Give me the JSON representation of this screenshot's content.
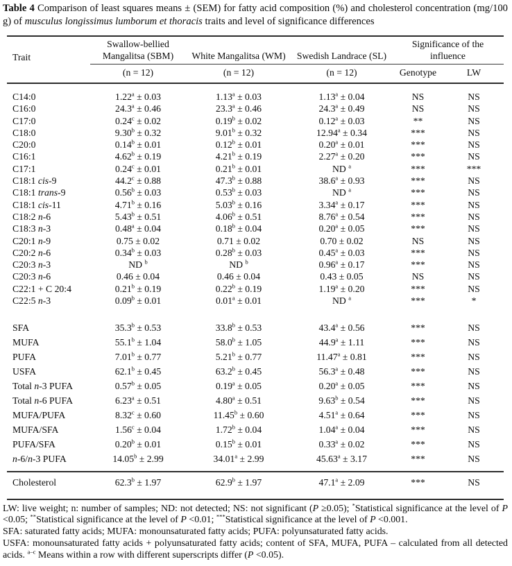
{
  "title": {
    "label": "Table 4",
    "text": " Comparison of least squares means ± (SEM) for fatty acid composition (%) and cholesterol concentration (mg/100 g) of _musculus longissimus lumborum et thoracis_ traits and level of significance differences"
  },
  "table": {
    "header": {
      "trait": "Trait",
      "groups": [
        {
          "name": "Swallow-bellied Mangalitsa (SBM)",
          "sub": "(n = 12)"
        },
        {
          "name": "White Mangalitsa (WM)",
          "sub": "(n = 12)"
        },
        {
          "name": "Swedish Landrace (SL)",
          "sub": "(n = 12)"
        }
      ],
      "significance": {
        "name": "Significance of the influence",
        "cols": [
          "Genotype",
          "LW"
        ]
      }
    },
    "sections": [
      {
        "rows": [
          {
            "trait": "C14:0",
            "sbm": "1.22{a} ± 0.03",
            "wm": "1.13{a} ± 0.03",
            "sl": "1.13{a} ± 0.04",
            "genotype": "NS",
            "lw": "NS"
          },
          {
            "trait": "C16:0",
            "sbm": "24.3{a} ± 0.46",
            "wm": "23.3{a} ± 0.46",
            "sl": "24.3{a} ± 0.49",
            "genotype": "NS",
            "lw": "NS"
          },
          {
            "trait": "C17:0",
            "sbm": "0.24{c} ± 0.02",
            "wm": "0.19{b} ± 0.02",
            "sl": "0.12{a} ± 0.03",
            "genotype": "**",
            "lw": "NS"
          },
          {
            "trait": "C18:0",
            "sbm": "9.30{b} ± 0.32",
            "wm": "9.01{b} ± 0.32",
            "sl": "12.94{a} ± 0.34",
            "genotype": "***",
            "lw": "NS"
          },
          {
            "trait": "C20:0",
            "sbm": "0.14{b} ± 0.01",
            "wm": "0.12{b} ± 0.01",
            "sl": "0.20{a} ± 0.01",
            "genotype": "***",
            "lw": "NS"
          },
          {
            "trait": "C16:1",
            "sbm": "4.62{b} ± 0.19",
            "wm": "4.21{b} ± 0.19",
            "sl": "2.27{a} ± 0.20",
            "genotype": "***",
            "lw": "NS"
          },
          {
            "trait": "C17:1",
            "sbm": "0.24{c} ± 0.01",
            "wm": "0.21{b} ± 0.01",
            "sl": "ND {a}",
            "genotype": "***",
            "lw": "***"
          },
          {
            "trait": "C18:1 _cis_-9",
            "sbm": "44.2{c} ± 0.88",
            "wm": "47.3{b} ± 0.88",
            "sl": "38.6{a} ± 0.93",
            "genotype": "***",
            "lw": "NS"
          },
          {
            "trait": "C18:1 _trans_-9",
            "sbm": "0.56{b} ± 0.03",
            "wm": "0.53{b} ± 0.03",
            "sl": "ND {a}",
            "genotype": "***",
            "lw": "NS"
          },
          {
            "trait": "C18:1 _cis_-11",
            "sbm": "4.71{b} ± 0.16",
            "wm": "5.03{b} ± 0.16",
            "sl": "3.34{a} ± 0.17",
            "genotype": "***",
            "lw": "NS"
          },
          {
            "trait": "C18:2 _n_-6",
            "sbm": "5.43{b} ± 0.51",
            "wm": "4.06{b} ± 0.51",
            "sl": "8.76{a} ± 0.54",
            "genotype": "***",
            "lw": "NS"
          },
          {
            "trait": "C18:3 _n_-3",
            "sbm": "0.48{a} ± 0.04",
            "wm": "0.18{b} ± 0.04",
            "sl": "0.20{a} ± 0.05",
            "genotype": "***",
            "lw": "NS"
          },
          {
            "trait": "C20:1 _n_-9",
            "sbm": "0.75 ± 0.02",
            "wm": "0.71 ± 0.02",
            "sl": "0.70 ± 0.02",
            "genotype": "NS",
            "lw": "NS"
          },
          {
            "trait": "C20:2 _n_-6",
            "sbm": "0.34{b} ± 0.03",
            "wm": "0.28{b} ± 0.03",
            "sl": "0.45{a} ± 0.03",
            "genotype": "***",
            "lw": "NS"
          },
          {
            "trait": "C20:3 _n_-3",
            "sbm": "ND {b}",
            "wm": "ND {b}",
            "sl": "0.96{a} ± 0.17",
            "genotype": "***",
            "lw": "NS"
          },
          {
            "trait": "C20:3 _n_-6",
            "sbm": "0.46 ± 0.04",
            "wm": "0.46 ± 0.04",
            "sl": "0.43 ± 0.05",
            "genotype": "NS",
            "lw": "NS"
          },
          {
            "trait": "C22:1 + C 20:4",
            "sbm": "0.21{b} ± 0.19",
            "wm": "0.22{b} ± 0.19",
            "sl": "1.19{a} ± 0.20",
            "genotype": "***",
            "lw": "NS"
          },
          {
            "trait": "C22:5 _n_-3",
            "sbm": "0.09{b} ± 0.01",
            "wm": "0.01{a} ± 0.01",
            "sl": "ND {a}",
            "genotype": "***",
            "lw": "*"
          }
        ]
      },
      {
        "rows": [
          {
            "trait": "SFA",
            "sbm": "35.3{b} ± 0.53",
            "wm": "33.8{b} ± 0.53",
            "sl": "43.4{a} ± 0.56",
            "genotype": "***",
            "lw": "NS"
          },
          {
            "trait": "MUFA",
            "sbm": "55.1{b} ± 1.04",
            "wm": "58.0{b} ± 1.05",
            "sl": "44.9{a} ± 1.11",
            "genotype": "***",
            "lw": "NS"
          },
          {
            "trait": "PUFA",
            "sbm": "7.01{b} ± 0.77",
            "wm": "5.21{b} ± 0.77",
            "sl": "11.47{a} ± 0.81",
            "genotype": "***",
            "lw": "NS"
          },
          {
            "trait": "USFA",
            "sbm": "62.1{b} ± 0.45",
            "wm": "63.2{b} ± 0.45",
            "sl": "56.3{a} ± 0.48",
            "genotype": "***",
            "lw": "NS"
          },
          {
            "trait": "Total _n_-3 PUFA",
            "sbm": "0.57{b} ± 0.05",
            "wm": "0.19{a} ± 0.05",
            "sl": "0.20{a} ± 0.05",
            "genotype": "***",
            "lw": "NS"
          },
          {
            "trait": "Total _n_-6 PUFA",
            "sbm": "6.23{a} ± 0.51",
            "wm": "4.80{a} ± 0.51",
            "sl": "9.63{b} ± 0.54",
            "genotype": "***",
            "lw": "NS"
          },
          {
            "trait": "MUFA/PUFA",
            "sbm": "8.32{c} ± 0.60",
            "wm": "11.45{b} ± 0.60",
            "sl": "4.51{a} ± 0.64",
            "genotype": "***",
            "lw": "NS"
          },
          {
            "trait": "MUFA/SFA",
            "sbm": "1.56{c} ± 0.04",
            "wm": "1.72{b} ± 0.04",
            "sl": "1.04{a} ± 0.04",
            "genotype": "***",
            "lw": "NS"
          },
          {
            "trait": "PUFA/SFA",
            "sbm": "0.20{b} ± 0.01",
            "wm": "0.15{b} ± 0.01",
            "sl": "0.33{a} ± 0.02",
            "genotype": "***",
            "lw": "NS"
          },
          {
            "trait": "_n_-6/_n_-3 PUFA",
            "sbm": "14.05{b} ± 2.99",
            "wm": "34.01{a} ± 2.99",
            "sl": "45.63{a} ± 3.17",
            "genotype": "***",
            "lw": "NS"
          }
        ]
      },
      {
        "rows": [
          {
            "trait": "Cholesterol",
            "sbm": "62.3{b} ± 1.97",
            "wm": "62.9{b} ± 1.97",
            "sl": "47.1{a} ± 2.09",
            "genotype": "***",
            "lw": "NS"
          }
        ]
      }
    ]
  },
  "footnotes": [
    "LW: live weight; n: number of samples; ND: not detected; NS: not significant (_P_ ≥0.05); {*}Statistical significance at the level of _P_ <0.05; {**}Statistical significance at the level of _P_ <0.01; {***}Statistical significance at the level of _P_ <0.001.",
    "SFA: saturated fatty acids; MUFA: monounsaturated fatty acids; PUFA: polyunsaturated fatty acids.",
    "USFA: monounsaturated fatty acids + polyunsaturated fatty acids; content of SFA, MUFA, PUFA – calculated from all detected acids. {a–c} Means within a row with different superscripts differ (_P_ <0.05)."
  ]
}
